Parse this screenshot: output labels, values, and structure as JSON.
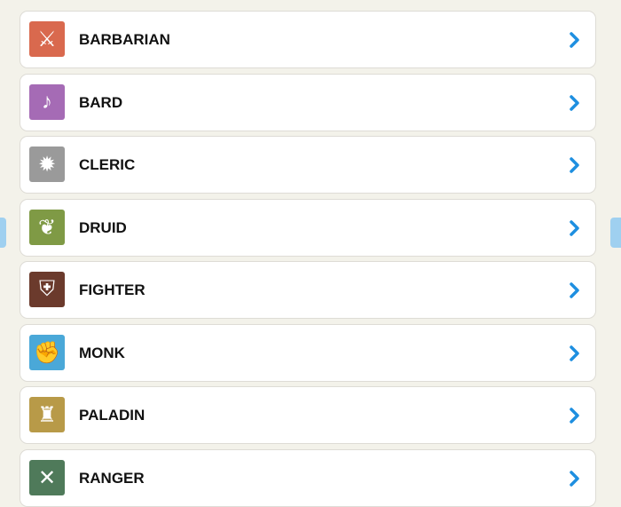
{
  "classes": [
    {
      "label": "BARBARIAN",
      "icon": "axe-icon",
      "color": "#d9694e",
      "glyph": "⚔"
    },
    {
      "label": "BARD",
      "icon": "lute-icon",
      "color": "#a56bb5",
      "glyph": "♪"
    },
    {
      "label": "CLERIC",
      "icon": "mace-icon",
      "color": "#9a9a9a",
      "glyph": "✹"
    },
    {
      "label": "DRUID",
      "icon": "staff-leaf-icon",
      "color": "#7f9a45",
      "glyph": "❦"
    },
    {
      "label": "FIGHTER",
      "icon": "sword-shield-icon",
      "color": "#6b3a2c",
      "glyph": "⛨"
    },
    {
      "label": "MONK",
      "icon": "fist-icon",
      "color": "#4aa8d8",
      "glyph": "✊"
    },
    {
      "label": "PALADIN",
      "icon": "helmet-icon",
      "color": "#b89a48",
      "glyph": "♜"
    },
    {
      "label": "RANGER",
      "icon": "blades-paw-icon",
      "color": "#4f7a5a",
      "glyph": "✕"
    }
  ],
  "accent": "#1e8fe0"
}
